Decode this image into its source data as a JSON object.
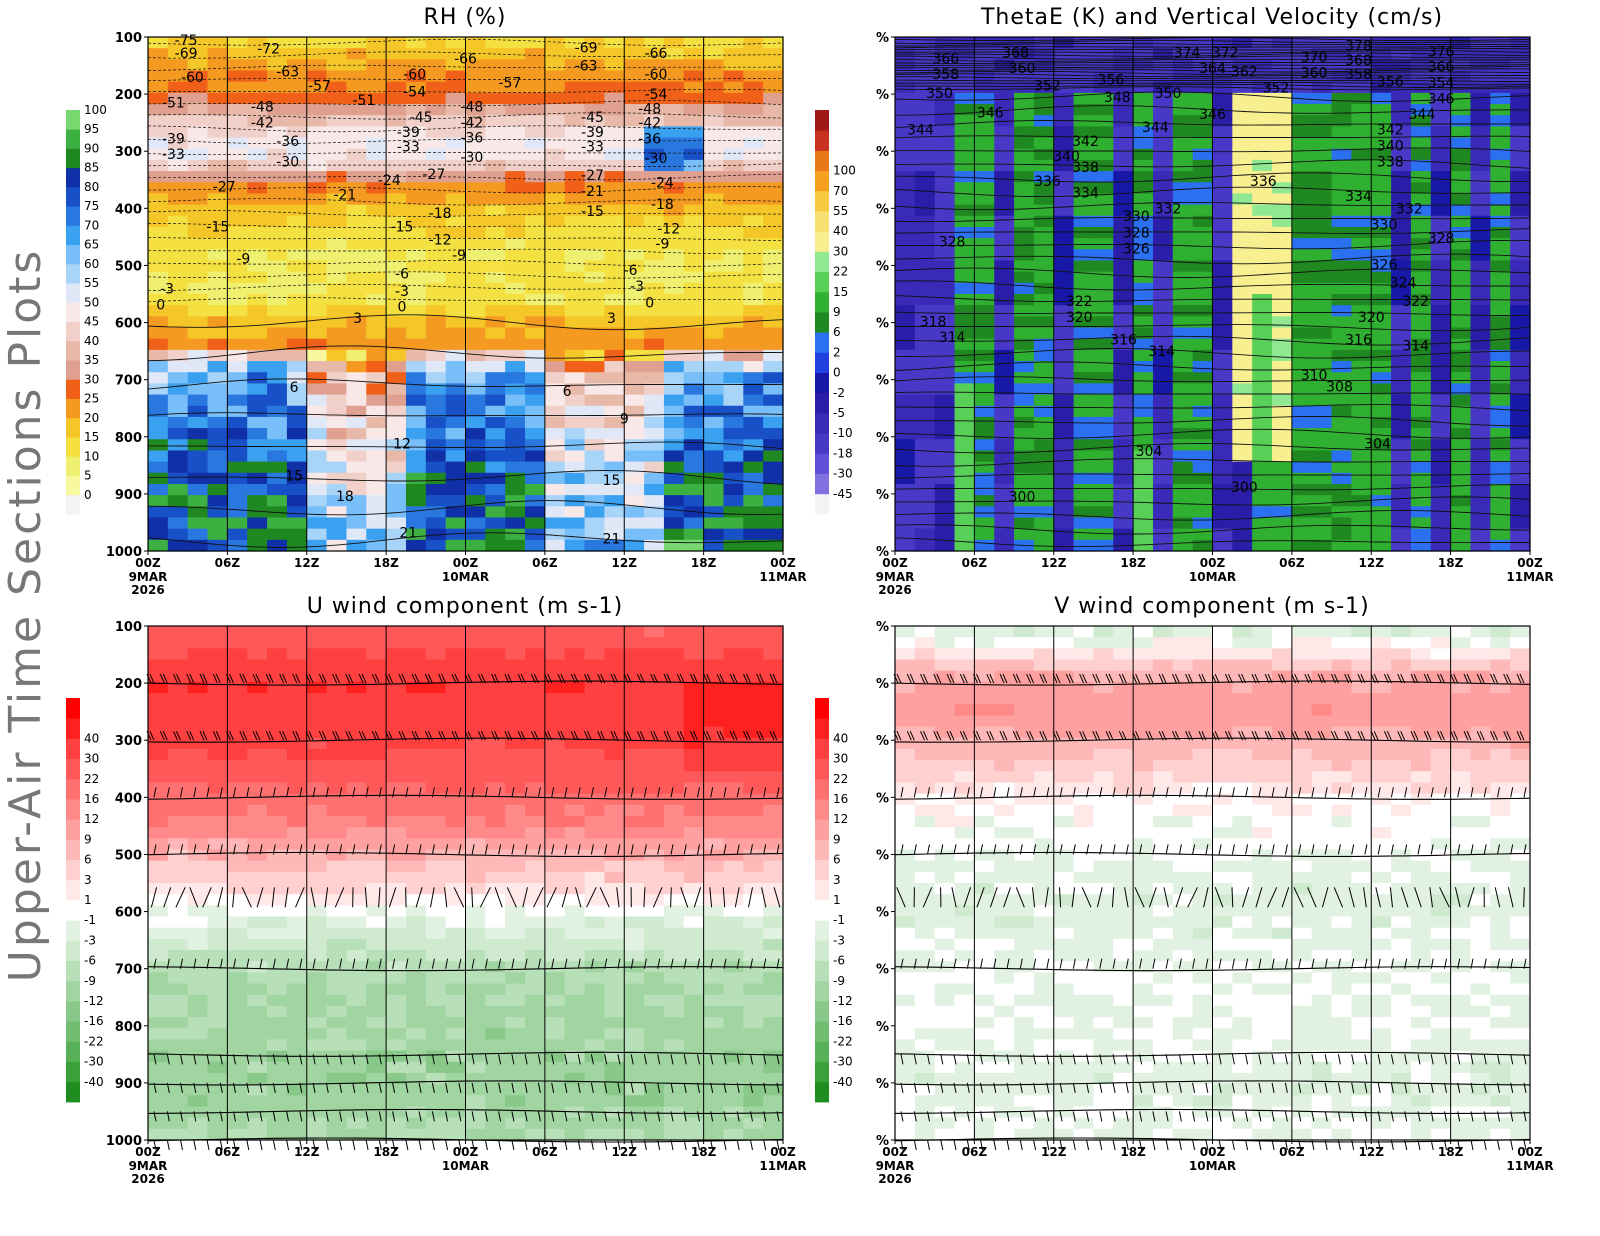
{
  "page_title": "Upper-Air Time Sections Plots",
  "colors": {
    "rh_scale": [
      "#f3f3f3",
      "#f8f8a0",
      "#f0f070",
      "#f4e040",
      "#f5c628",
      "#f59a20",
      "#f06018",
      "#e0a090",
      "#e8b8a8",
      "#f0d0c8",
      "#f8e8e8",
      "#e0e8f8",
      "#a8d4f8",
      "#78bef8",
      "#3aa0f0",
      "#2878e0",
      "#1850c8",
      "#1030a8",
      "#208820",
      "#3cb040",
      "#78d870"
    ],
    "omega_scale": [
      "#f3f3f3",
      "#8070e0",
      "#6050d8",
      "#4838c8",
      "#3a2ab8",
      "#2a1ea8",
      "#1818a8",
      "#2040e0",
      "#2a70f0",
      "#208820",
      "#30b030",
      "#58d058",
      "#90e890",
      "#f8f090",
      "#f8e070",
      "#f8c840",
      "#f5a020",
      "#e87818",
      "#c83020",
      "#a01818"
    ],
    "diverging_scale": [
      "#1e8c1e",
      "#3aa03a",
      "#58b058",
      "#70bc70",
      "#88c888",
      "#a0d4a0",
      "#b8e0b8",
      "#cfeacf",
      "#e2f2e2",
      "#ffffff",
      "#ffe8e8",
      "#ffd0d0",
      "#ffb8b8",
      "#ffa0a0",
      "#ff8888",
      "#ff7070",
      "#ff5858",
      "#ff4040",
      "#ff2020",
      "#ff0000"
    ]
  },
  "chart_data": [
    {
      "id": "rh",
      "type": "heatmap",
      "title": "RH (%)",
      "ylim": [
        1000,
        100
      ],
      "yticks": [
        "100",
        "200",
        "300",
        "400",
        "500",
        "600",
        "700",
        "800",
        "900",
        "1000"
      ],
      "xticks": [
        "00Z",
        "06Z",
        "12Z",
        "18Z",
        "00Z",
        "06Z",
        "12Z",
        "18Z",
        "00Z"
      ],
      "xdates": [
        "9MAR\n2026",
        "",
        "",
        "",
        "10MAR",
        "",
        "",
        "",
        "11MAR"
      ],
      "colorbar": [
        "0",
        "5",
        "10",
        "15",
        "20",
        "25",
        "30",
        "35",
        "40",
        "45",
        "50",
        "55",
        "60",
        "65",
        "70",
        "75",
        "80",
        "85",
        "90",
        "95",
        "100"
      ],
      "profile": [
        [
          100,
          12
        ],
        [
          150,
          22
        ],
        [
          200,
          26
        ],
        [
          260,
          45
        ],
        [
          300,
          50
        ],
        [
          330,
          40
        ],
        [
          360,
          24
        ],
        [
          400,
          18
        ],
        [
          450,
          12
        ],
        [
          550,
          10
        ],
        [
          600,
          18
        ],
        [
          640,
          24
        ],
        [
          670,
          55
        ],
        [
          700,
          66
        ],
        [
          800,
          74
        ],
        [
          900,
          82
        ],
        [
          1000,
          86
        ]
      ],
      "temperature_labels": [
        {
          "v": "-75",
          "t": 0.06,
          "p": 105
        },
        {
          "v": "-69",
          "t": 0.06,
          "p": 128
        },
        {
          "v": "-60",
          "t": 0.07,
          "p": 170
        },
        {
          "v": "-51",
          "t": 0.04,
          "p": 215
        },
        {
          "v": "-39",
          "t": 0.04,
          "p": 278
        },
        {
          "v": "-33",
          "t": 0.04,
          "p": 305
        },
        {
          "v": "-27",
          "t": 0.12,
          "p": 362
        },
        {
          "v": "-15",
          "t": 0.11,
          "p": 432
        },
        {
          "v": "-9",
          "t": 0.15,
          "p": 488
        },
        {
          "v": "-3",
          "t": 0.03,
          "p": 540
        },
        {
          "v": "0",
          "t": 0.02,
          "p": 568
        },
        {
          "v": "-72",
          "t": 0.19,
          "p": 120
        },
        {
          "v": "-63",
          "t": 0.22,
          "p": 160
        },
        {
          "v": "-48",
          "t": 0.18,
          "p": 222
        },
        {
          "v": "-42",
          "t": 0.18,
          "p": 250
        },
        {
          "v": "-36",
          "t": 0.22,
          "p": 282
        },
        {
          "v": "-30",
          "t": 0.22,
          "p": 318
        },
        {
          "v": "-57",
          "t": 0.27,
          "p": 185
        },
        {
          "v": "-51",
          "t": 0.34,
          "p": 210
        },
        {
          "v": "-60",
          "t": 0.42,
          "p": 165
        },
        {
          "v": "-54",
          "t": 0.42,
          "p": 195
        },
        {
          "v": "-45",
          "t": 0.43,
          "p": 240
        },
        {
          "v": "-39",
          "t": 0.41,
          "p": 266
        },
        {
          "v": "-33",
          "t": 0.41,
          "p": 292
        },
        {
          "v": "-24",
          "t": 0.38,
          "p": 350
        },
        {
          "v": "-21",
          "t": 0.31,
          "p": 376
        },
        {
          "v": "-27",
          "t": 0.45,
          "p": 340
        },
        {
          "v": "-15",
          "t": 0.4,
          "p": 432
        },
        {
          "v": "-18",
          "t": 0.46,
          "p": 408
        },
        {
          "v": "-12",
          "t": 0.46,
          "p": 455
        },
        {
          "v": "-9",
          "t": 0.49,
          "p": 482
        },
        {
          "v": "-6",
          "t": 0.4,
          "p": 514
        },
        {
          "v": "-3",
          "t": 0.4,
          "p": 545
        },
        {
          "v": "0",
          "t": 0.4,
          "p": 572
        },
        {
          "v": "-66",
          "t": 0.5,
          "p": 138
        },
        {
          "v": "-48",
          "t": 0.51,
          "p": 222
        },
        {
          "v": "-42",
          "t": 0.51,
          "p": 250
        },
        {
          "v": "-36",
          "t": 0.51,
          "p": 276
        },
        {
          "v": "-30",
          "t": 0.51,
          "p": 310
        },
        {
          "v": "-57",
          "t": 0.57,
          "p": 180
        },
        {
          "v": "-69",
          "t": 0.69,
          "p": 118
        },
        {
          "v": "-63",
          "t": 0.69,
          "p": 150
        },
        {
          "v": "-45",
          "t": 0.7,
          "p": 240
        },
        {
          "v": "-39",
          "t": 0.7,
          "p": 266
        },
        {
          "v": "-33",
          "t": 0.7,
          "p": 292
        },
        {
          "v": "-27",
          "t": 0.7,
          "p": 342
        },
        {
          "v": "-21",
          "t": 0.7,
          "p": 370
        },
        {
          "v": "-15",
          "t": 0.7,
          "p": 405
        },
        {
          "v": "-6",
          "t": 0.76,
          "p": 508
        },
        {
          "v": "-3",
          "t": 0.77,
          "p": 536
        },
        {
          "v": "0",
          "t": 0.79,
          "p": 565
        },
        {
          "v": "-66",
          "t": 0.8,
          "p": 128
        },
        {
          "v": "-60",
          "t": 0.8,
          "p": 165
        },
        {
          "v": "-54",
          "t": 0.8,
          "p": 200
        },
        {
          "v": "-48",
          "t": 0.79,
          "p": 225
        },
        {
          "v": "-42",
          "t": 0.79,
          "p": 250
        },
        {
          "v": "-36",
          "t": 0.79,
          "p": 278
        },
        {
          "v": "-30",
          "t": 0.8,
          "p": 312
        },
        {
          "v": "-24",
          "t": 0.81,
          "p": 355
        },
        {
          "v": "-18",
          "t": 0.81,
          "p": 392
        },
        {
          "v": "-12",
          "t": 0.82,
          "p": 435
        },
        {
          "v": "-9",
          "t": 0.81,
          "p": 462
        },
        {
          "v": "3",
          "t": 0.33,
          "p": 592
        },
        {
          "v": "3",
          "t": 0.73,
          "p": 592
        },
        {
          "v": "6",
          "t": 0.23,
          "p": 713
        },
        {
          "v": "6",
          "t": 0.66,
          "p": 720
        },
        {
          "v": "9",
          "t": 0.75,
          "p": 768
        },
        {
          "v": "12",
          "t": 0.4,
          "p": 812
        },
        {
          "v": "15",
          "t": 0.23,
          "p": 868
        },
        {
          "v": "15",
          "t": 0.73,
          "p": 876
        },
        {
          "v": "18",
          "t": 0.31,
          "p": 904
        },
        {
          "v": "21",
          "t": 0.41,
          "p": 968
        },
        {
          "v": "21",
          "t": 0.73,
          "p": 978
        }
      ]
    },
    {
      "id": "thetae",
      "type": "heatmap",
      "title": "ThetaE (K) and Vertical Velocity (cm/s)",
      "ylim": [
        1000,
        100
      ],
      "yticks": [
        "%",
        "%",
        "%",
        "%",
        "%",
        "%",
        "%",
        "%",
        "%",
        "%"
      ],
      "xticks": [
        "00Z",
        "06Z",
        "12Z",
        "18Z",
        "00Z",
        "06Z",
        "12Z",
        "18Z",
        "00Z"
      ],
      "xdates": [
        "9MAR\n2026",
        "",
        "",
        "",
        "10MAR",
        "",
        "",
        "",
        "11MAR"
      ],
      "colorbar": [
        "-45",
        "-30",
        "-18",
        "-10",
        "-5",
        "-2",
        "0",
        "2",
        "6",
        "9",
        "15",
        "22",
        "30",
        "40",
        "55",
        "70",
        "100"
      ],
      "thetae_labels": [
        {
          "v": "366",
          "t": 0.08,
          "p": 138
        },
        {
          "v": "358",
          "t": 0.08,
          "p": 165
        },
        {
          "v": "350",
          "t": 0.07,
          "p": 198
        },
        {
          "v": "344",
          "t": 0.04,
          "p": 262
        },
        {
          "v": "368",
          "t": 0.19,
          "p": 127
        },
        {
          "v": "360",
          "t": 0.2,
          "p": 154
        },
        {
          "v": "352",
          "t": 0.24,
          "p": 185
        },
        {
          "v": "346",
          "t": 0.15,
          "p": 232
        },
        {
          "v": "356",
          "t": 0.34,
          "p": 174
        },
        {
          "v": "348",
          "t": 0.35,
          "p": 205
        },
        {
          "v": "350",
          "t": 0.43,
          "p": 198
        },
        {
          "v": "344",
          "t": 0.41,
          "p": 258
        },
        {
          "v": "342",
          "t": 0.3,
          "p": 282
        },
        {
          "v": "340",
          "t": 0.27,
          "p": 308
        },
        {
          "v": "338",
          "t": 0.3,
          "p": 328
        },
        {
          "v": "336",
          "t": 0.24,
          "p": 352
        },
        {
          "v": "334",
          "t": 0.3,
          "p": 372
        },
        {
          "v": "330",
          "t": 0.38,
          "p": 413
        },
        {
          "v": "328",
          "t": 0.38,
          "p": 442
        },
        {
          "v": "326",
          "t": 0.38,
          "p": 470
        },
        {
          "v": "332",
          "t": 0.43,
          "p": 400
        },
        {
          "v": "328",
          "t": 0.09,
          "p": 458
        },
        {
          "v": "346",
          "t": 0.5,
          "p": 235
        },
        {
          "v": "374",
          "t": 0.46,
          "p": 127
        },
        {
          "v": "372",
          "t": 0.52,
          "p": 127
        },
        {
          "v": "364",
          "t": 0.5,
          "p": 154
        },
        {
          "v": "362",
          "t": 0.55,
          "p": 160
        },
        {
          "v": "352",
          "t": 0.6,
          "p": 188
        },
        {
          "v": "336",
          "t": 0.58,
          "p": 352
        },
        {
          "v": "370",
          "t": 0.66,
          "p": 135
        },
        {
          "v": "360",
          "t": 0.66,
          "p": 162
        },
        {
          "v": "378",
          "t": 0.73,
          "p": 115
        },
        {
          "v": "368",
          "t": 0.73,
          "p": 140
        },
        {
          "v": "358",
          "t": 0.73,
          "p": 165
        },
        {
          "v": "356",
          "t": 0.78,
          "p": 178
        },
        {
          "v": "376",
          "t": 0.86,
          "p": 125
        },
        {
          "v": "366",
          "t": 0.86,
          "p": 152
        },
        {
          "v": "354",
          "t": 0.86,
          "p": 180
        },
        {
          "v": "346",
          "t": 0.86,
          "p": 208
        },
        {
          "v": "344",
          "t": 0.83,
          "p": 235
        },
        {
          "v": "342",
          "t": 0.78,
          "p": 262
        },
        {
          "v": "340",
          "t": 0.78,
          "p": 290
        },
        {
          "v": "338",
          "t": 0.78,
          "p": 318
        },
        {
          "v": "334",
          "t": 0.73,
          "p": 378
        },
        {
          "v": "332",
          "t": 0.81,
          "p": 400
        },
        {
          "v": "330",
          "t": 0.77,
          "p": 428
        },
        {
          "v": "328",
          "t": 0.86,
          "p": 452
        },
        {
          "v": "326",
          "t": 0.77,
          "p": 498
        },
        {
          "v": "324",
          "t": 0.8,
          "p": 530
        },
        {
          "v": "322",
          "t": 0.82,
          "p": 562
        },
        {
          "v": "322",
          "t": 0.29,
          "p": 562
        },
        {
          "v": "320",
          "t": 0.29,
          "p": 590
        },
        {
          "v": "318",
          "t": 0.06,
          "p": 598
        },
        {
          "v": "316",
          "t": 0.36,
          "p": 630
        },
        {
          "v": "314",
          "t": 0.42,
          "p": 650
        },
        {
          "v": "314",
          "t": 0.09,
          "p": 625
        },
        {
          "v": "320",
          "t": 0.75,
          "p": 590
        },
        {
          "v": "316",
          "t": 0.73,
          "p": 630
        },
        {
          "v": "314",
          "t": 0.82,
          "p": 640
        },
        {
          "v": "310",
          "t": 0.66,
          "p": 692
        },
        {
          "v": "308",
          "t": 0.7,
          "p": 712
        },
        {
          "v": "304",
          "t": 0.76,
          "p": 812
        },
        {
          "v": "304",
          "t": 0.4,
          "p": 825
        },
        {
          "v": "300",
          "t": 0.55,
          "p": 888
        },
        {
          "v": "300",
          "t": 0.2,
          "p": 905
        }
      ]
    },
    {
      "id": "uwind",
      "type": "heatmap",
      "title": "U wind component (m s-1)",
      "ylim": [
        1000,
        100
      ],
      "yticks": [
        "100",
        "200",
        "300",
        "400",
        "500",
        "600",
        "700",
        "800",
        "900",
        "1000"
      ],
      "xticks": [
        "00Z",
        "06Z",
        "12Z",
        "18Z",
        "00Z",
        "06Z",
        "12Z",
        "18Z",
        "00Z"
      ],
      "xdates": [
        "9MAR\n2026",
        "",
        "",
        "",
        "10MAR",
        "",
        "",
        "",
        "11MAR"
      ],
      "colorbar": [
        "-40",
        "-30",
        "-22",
        "-16",
        "-12",
        "-9",
        "-6",
        "-3",
        "-1",
        "1",
        "3",
        "6",
        "9",
        "12",
        "16",
        "22",
        "30",
        "40"
      ],
      "profile": [
        [
          100,
          22
        ],
        [
          200,
          40
        ],
        [
          300,
          32
        ],
        [
          400,
          20
        ],
        [
          500,
          8
        ],
        [
          560,
          3
        ],
        [
          600,
          -1
        ],
        [
          650,
          -4
        ],
        [
          700,
          -8
        ],
        [
          800,
          -10
        ],
        [
          900,
          -11
        ],
        [
          1000,
          -9
        ]
      ],
      "barb_levels": [
        200,
        300,
        400,
        500,
        575,
        700,
        850,
        900,
        950,
        1000
      ]
    },
    {
      "id": "vwind",
      "type": "heatmap",
      "title": "V wind component (m s-1)",
      "ylim": [
        1000,
        100
      ],
      "yticks": [
        "%",
        "%",
        "%",
        "%",
        "%",
        "%",
        "%",
        "%",
        "%",
        "%"
      ],
      "xticks": [
        "00Z",
        "06Z",
        "12Z",
        "18Z",
        "00Z",
        "06Z",
        "12Z",
        "18Z",
        "00Z"
      ],
      "xdates": [
        "9MAR\n2026",
        "",
        "",
        "",
        "10MAR",
        "",
        "",
        "",
        "11MAR"
      ],
      "colorbar": [
        "-40",
        "-30",
        "-22",
        "-16",
        "-12",
        "-9",
        "-6",
        "-3",
        "-1",
        "1",
        "3",
        "6",
        "9",
        "12",
        "16",
        "22",
        "30",
        "40"
      ],
      "profile": [
        [
          100,
          -3
        ],
        [
          140,
          1
        ],
        [
          200,
          10
        ],
        [
          260,
          11
        ],
        [
          300,
          8
        ],
        [
          360,
          4
        ],
        [
          400,
          1
        ],
        [
          500,
          -1
        ],
        [
          600,
          -2
        ],
        [
          700,
          -1
        ],
        [
          800,
          -1
        ],
        [
          900,
          -2
        ],
        [
          1000,
          -1
        ]
      ],
      "barb_levels": [
        200,
        300,
        400,
        500,
        575,
        700,
        850,
        900,
        950,
        1000
      ]
    }
  ]
}
